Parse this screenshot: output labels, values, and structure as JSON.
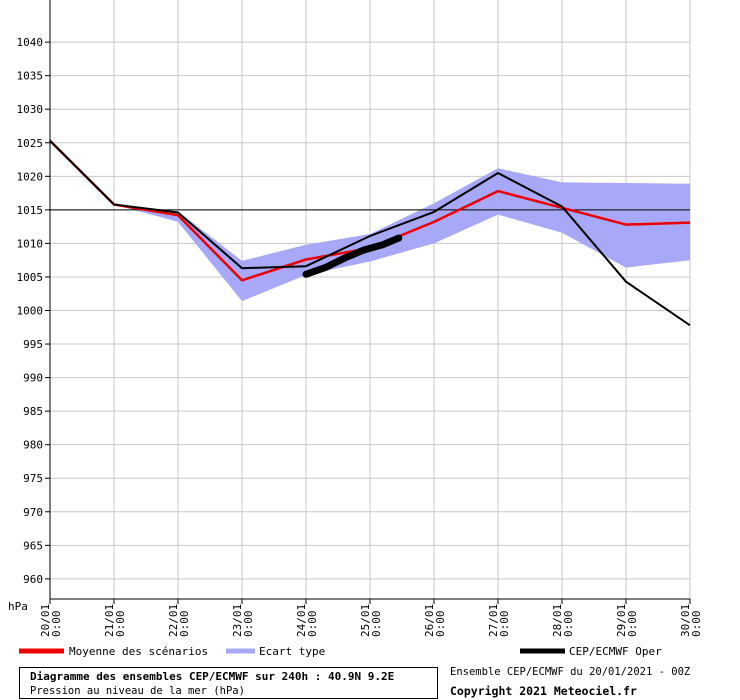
{
  "chart_data": {
    "type": "line",
    "ylabel": "hPa",
    "ylim": [
      957,
      1043
    ],
    "yticks": [
      1040,
      1035,
      1030,
      1025,
      1020,
      1015,
      1010,
      1005,
      1000,
      995,
      990,
      985,
      980,
      975,
      970,
      965,
      960
    ],
    "reference_line": 1015,
    "grid": true,
    "categories": [
      "20/01 0:00",
      "21/01 0:00",
      "22/01 0:00",
      "23/01 0:00",
      "24/01 0:00",
      "25/01 0:00",
      "26/01 0:00",
      "27/01 0:00",
      "28/01 0:00",
      "29/01 0:00",
      "30/01 0:00"
    ],
    "x_labels": [
      {
        "date": "20/01",
        "time": "0:00"
      },
      {
        "date": "21/01",
        "time": "0:00"
      },
      {
        "date": "22/01",
        "time": "0:00"
      },
      {
        "date": "23/01",
        "time": "0:00"
      },
      {
        "date": "24/01",
        "time": "0:00"
      },
      {
        "date": "25/01",
        "time": "0:00"
      },
      {
        "date": "26/01",
        "time": "0:00"
      },
      {
        "date": "27/01",
        "time": "0:00"
      },
      {
        "date": "28/01",
        "time": "0:00"
      },
      {
        "date": "29/01",
        "time": "0:00"
      },
      {
        "date": "30/01",
        "time": "0:00"
      }
    ],
    "legend_placement": "bottom",
    "series": [
      {
        "name": "Moyenne des scénarios",
        "color": "#ee0000",
        "values": [
          1025.3,
          1015.8,
          1014.2,
          1004.5,
          1007.6,
          1009.3,
          1013.2,
          1017.8,
          1015.3,
          1012.8,
          1013.1
        ]
      },
      {
        "name": "Ecart type",
        "color": "#a8a8f8",
        "upper": [
          1025.3,
          1015.8,
          1014.8,
          1007.4,
          1009.8,
          1011.4,
          1016.0,
          1021.2,
          1019.1,
          1019.0,
          1018.9
        ],
        "lower": [
          1025.3,
          1015.8,
          1013.2,
          1001.4,
          1005.3,
          1007.3,
          1010.0,
          1014.3,
          1011.6,
          1006.4,
          1007.5
        ]
      },
      {
        "name": "CEP/ECMWF Oper",
        "color": "#000000",
        "values": [
          1025.3,
          1015.8,
          1014.6,
          1006.3,
          1006.6,
          1011.1,
          1014.7,
          1020.5,
          1015.5,
          1004.3,
          997.8
        ]
      }
    ],
    "observed": {
      "x": [
        4.0,
        4.3,
        4.6,
        4.9,
        5.2,
        5.45
      ],
      "values": [
        1005.4,
        1006.4,
        1007.8,
        1009.0,
        1009.8,
        1010.8
      ]
    }
  },
  "footer": {
    "title": "Diagramme des ensembles CEP/ECMWF sur 240h : 40.9N 9.2E",
    "subtitle": "Pression au niveau de la mer (hPa)",
    "ensemble": "Ensemble CEP/ECMWF du 20/01/2021 - 00Z",
    "copyright": "Copyright 2021 Meteociel.fr"
  }
}
